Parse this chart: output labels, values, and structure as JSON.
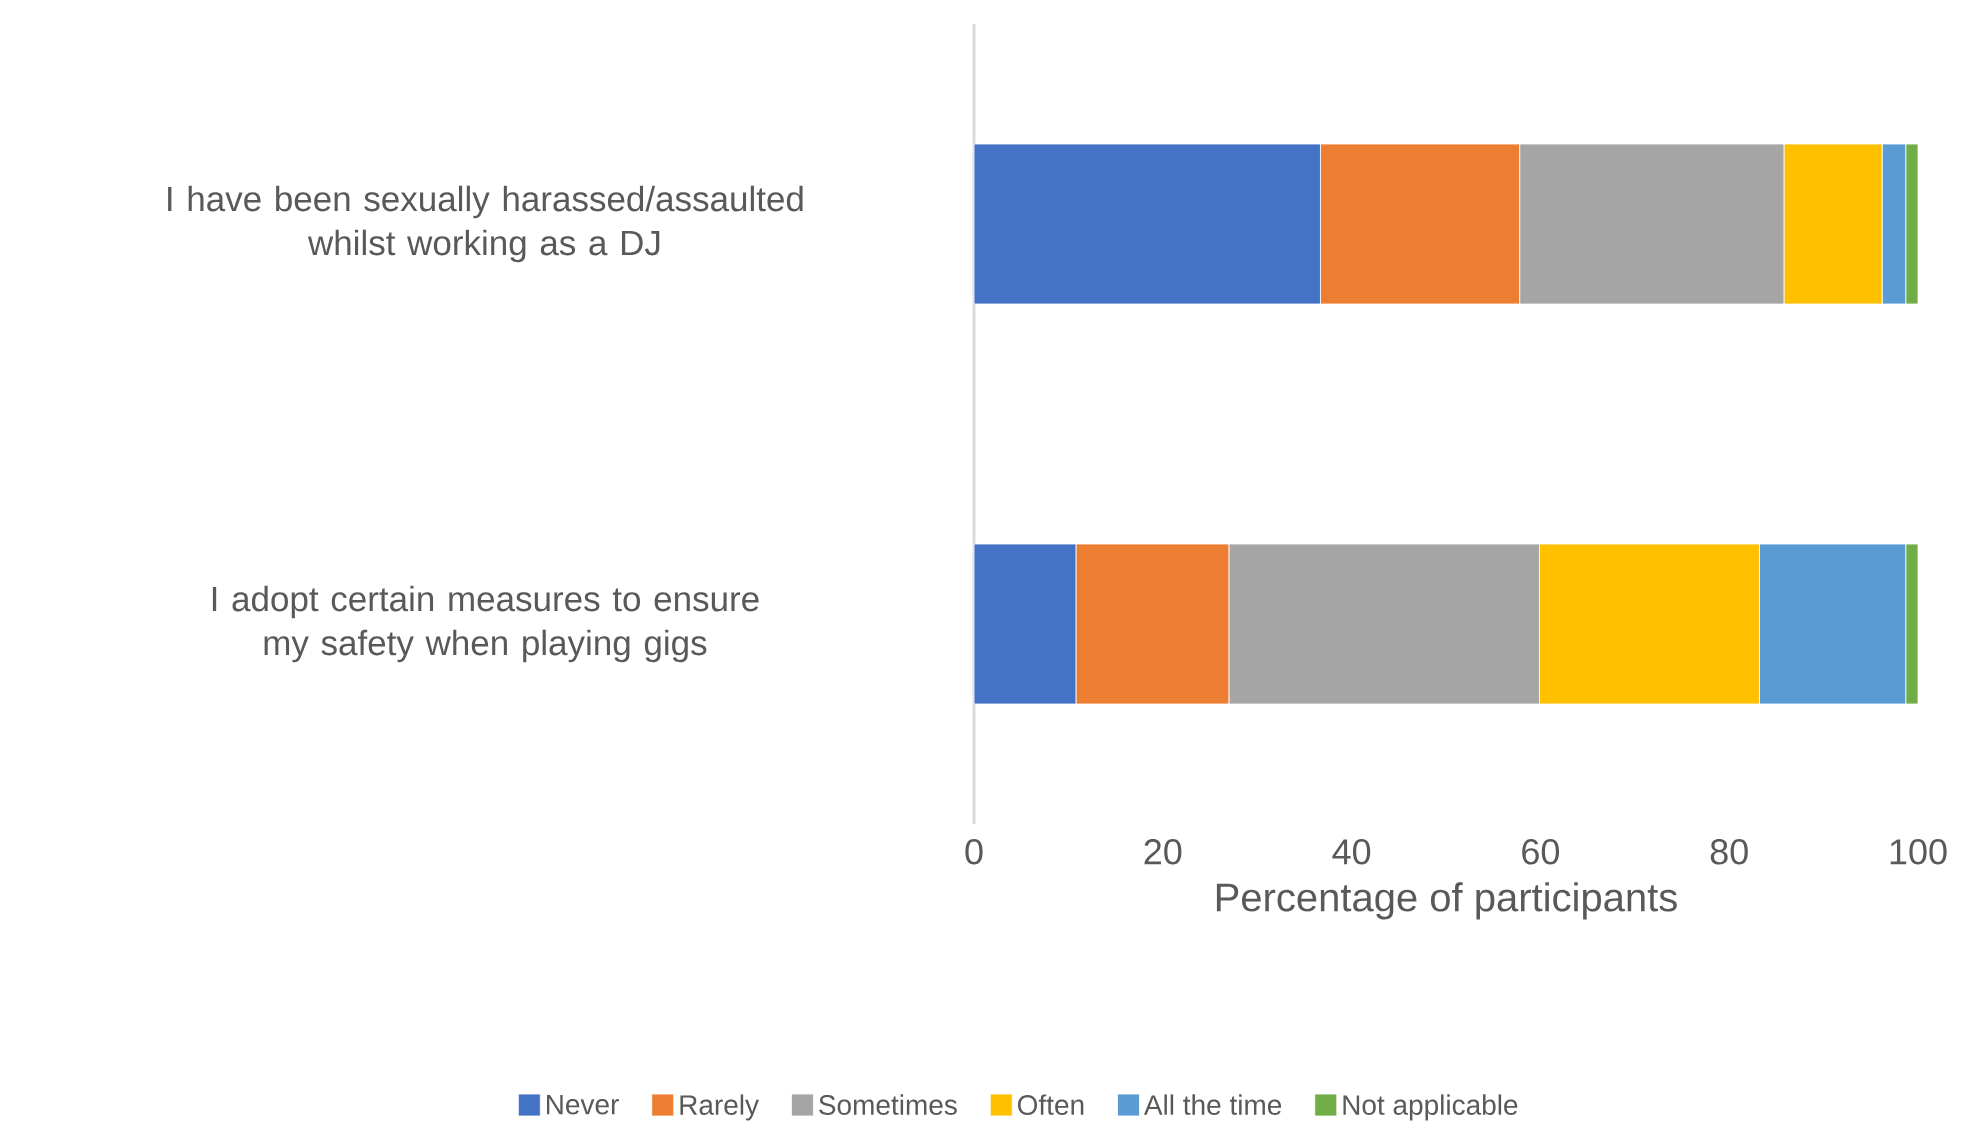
{
  "chart_data": {
    "type": "bar",
    "orientation": "horizontal",
    "stacked": true,
    "categories": [
      "I have been sexually harassed/assaulted whilst working as a DJ",
      "I adopt certain measures to ensure my safety when playing gigs"
    ],
    "series": [
      {
        "name": "Never",
        "color": "#4472c4",
        "values": [
          36.7,
          10.8
        ]
      },
      {
        "name": "Rarely",
        "color": "#ed7d31",
        "values": [
          21.1,
          16.2
        ]
      },
      {
        "name": "Sometimes",
        "color": "#a5a5a5",
        "values": [
          28.0,
          32.9
        ]
      },
      {
        "name": "Often",
        "color": "#ffc000",
        "values": [
          10.4,
          23.3
        ]
      },
      {
        "name": "All the time",
        "color": "#5b9bd5",
        "values": [
          2.5,
          15.5
        ]
      },
      {
        "name": "Not applicable",
        "color": "#70ad47",
        "values": [
          1.3,
          1.3
        ]
      }
    ],
    "xlim": [
      0,
      100
    ],
    "xticks": [
      0,
      20,
      40,
      60,
      80,
      100
    ],
    "xlabel": "Percentage of participants",
    "legend": "bottom"
  }
}
